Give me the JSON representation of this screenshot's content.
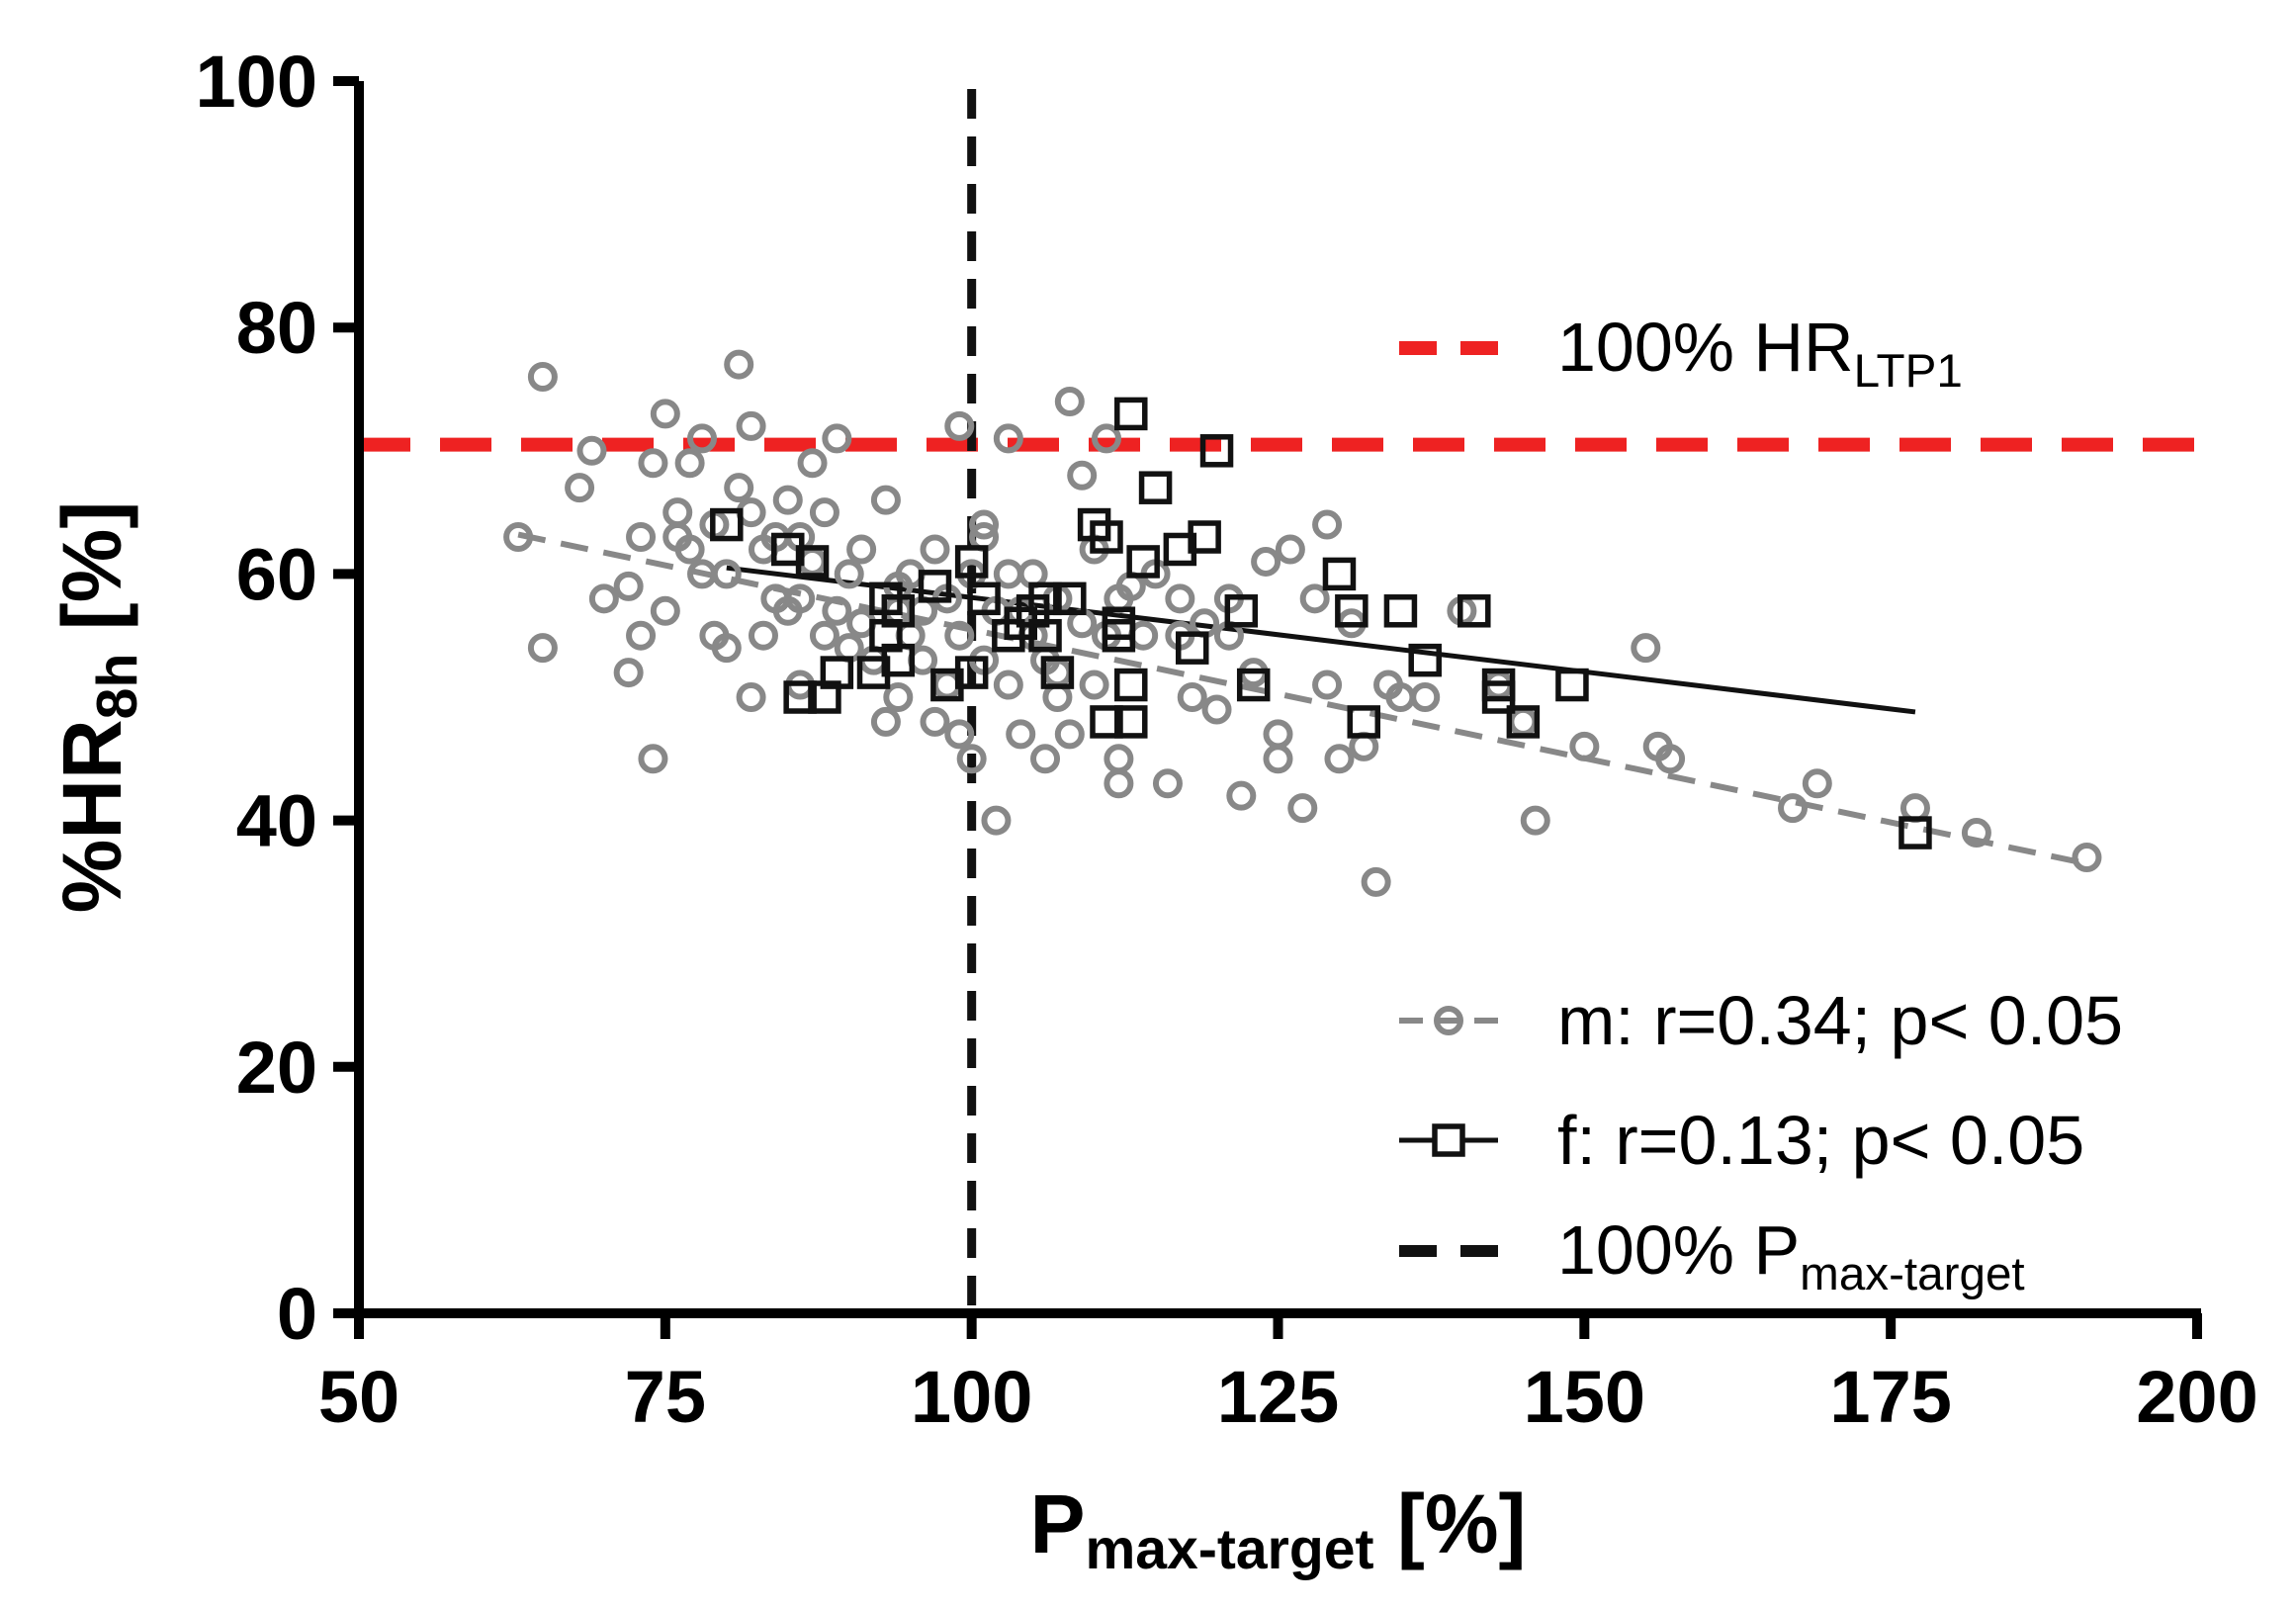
{
  "chart_data": {
    "type": "scatter",
    "xlabel": {
      "main": "P",
      "sub": "max-target",
      "suffix": " [%]"
    },
    "ylabel": {
      "main": "%HR",
      "sub": "8h",
      "suffix": " [%]"
    },
    "xlim": [
      50,
      200
    ],
    "ylim": [
      0,
      100
    ],
    "xticks": [
      "50",
      "75",
      "100",
      "125",
      "150",
      "175",
      "200"
    ],
    "yticks": [
      "0",
      "20",
      "40",
      "60",
      "80",
      "100"
    ],
    "grid": false,
    "legend_placement": "right",
    "reference_lines": [
      {
        "orientation": "horizontal",
        "value": 70.5,
        "color": "#ee2222",
        "style": "dashed",
        "legend": {
          "main": "100% HR",
          "sub": "LTP1"
        }
      },
      {
        "orientation": "vertical",
        "value": 100,
        "color": "#111111",
        "style": "dashed",
        "legend": {
          "main": "100% P",
          "sub": "max-target"
        }
      }
    ],
    "series": [
      {
        "name": "m: r=0.34; p< 0.05",
        "marker": "circle",
        "color": "#888888",
        "fit_style": "dashed",
        "fit": {
          "x": [
            63,
            191
          ],
          "y": [
            63.2,
            36.5
          ]
        },
        "x": [
          63,
          65,
          65,
          68,
          69,
          70,
          72,
          72,
          73,
          73,
          74,
          74,
          75,
          75,
          76,
          76,
          77,
          77,
          78,
          78,
          79,
          79,
          80,
          80,
          81,
          81,
          82,
          82,
          82,
          83,
          83,
          84,
          84,
          85,
          85,
          86,
          86,
          87,
          87,
          88,
          88,
          89,
          89,
          90,
          90,
          91,
          91,
          92,
          93,
          93,
          94,
          94,
          95,
          95,
          96,
          96,
          97,
          97,
          98,
          98,
          99,
          99,
          100,
          100,
          101,
          101,
          102,
          102,
          103,
          103,
          104,
          104,
          105,
          105,
          106,
          106,
          107,
          107,
          108,
          108,
          109,
          109,
          110,
          110,
          111,
          111,
          112,
          112,
          113,
          114,
          115,
          116,
          117,
          118,
          119,
          120,
          121,
          122,
          123,
          124,
          125,
          126,
          127,
          128,
          129,
          130,
          131,
          132,
          133,
          134,
          135,
          137,
          140,
          143,
          145,
          146,
          150,
          155,
          156,
          157,
          167,
          169,
          177,
          182,
          191,
          86,
          94,
          99,
          101,
          103,
          107,
          112,
          117,
          121,
          125,
          129
        ],
        "y": [
          63,
          76,
          54,
          67,
          70,
          58,
          52,
          59,
          55,
          63,
          45,
          69,
          57,
          73,
          63,
          65,
          62,
          69,
          60,
          71,
          55,
          64,
          54,
          60,
          67,
          77,
          50,
          72,
          65,
          62,
          55,
          63,
          58,
          57,
          66,
          51,
          58,
          69,
          61,
          55,
          65,
          57,
          71,
          54,
          60,
          56,
          62,
          53,
          48,
          66,
          50,
          59,
          55,
          60,
          53,
          57,
          62,
          48,
          58,
          51,
          55,
          47,
          45,
          60,
          63,
          53,
          57,
          40,
          51,
          71,
          57,
          47,
          55,
          60,
          53,
          45,
          58,
          52,
          74,
          47,
          56,
          68,
          62,
          51,
          71,
          55,
          58,
          43,
          59,
          55,
          60,
          43,
          58,
          50,
          56,
          49,
          58,
          42,
          52,
          61,
          45,
          62,
          41,
          58,
          64,
          45,
          56,
          46,
          35,
          51,
          50,
          50,
          57,
          51,
          48,
          40,
          46,
          54,
          46,
          45,
          41,
          43,
          41,
          39,
          37,
          63,
          57,
          72,
          64,
          60,
          50,
          45,
          55,
          55,
          47,
          51
        ]
      },
      {
        "name": "f: r=0.13; p< 0.05",
        "marker": "square",
        "color": "#111111",
        "fit_style": "solid",
        "fit": {
          "x": [
            80,
            177
          ],
          "y": [
            60.5,
            48.8
          ]
        },
        "x": [
          80,
          85,
          86,
          87,
          88,
          89,
          92,
          93,
          93,
          94,
          94,
          97,
          98,
          100,
          100,
          101,
          103,
          104,
          105,
          106,
          106,
          107,
          108,
          110,
          111,
          111,
          112,
          112,
          113,
          113,
          113,
          114,
          115,
          117,
          118,
          119,
          120,
          122,
          123,
          130,
          131,
          132,
          135,
          137,
          141,
          143,
          143,
          145,
          149,
          177
        ],
        "y": [
          64,
          62,
          50,
          61,
          50,
          52,
          52,
          58,
          55,
          57,
          53,
          59,
          51,
          52,
          61,
          58,
          55,
          56,
          57,
          58,
          55,
          52,
          58,
          64,
          63,
          48,
          56,
          55,
          73,
          51,
          48,
          61,
          67,
          62,
          54,
          63,
          70,
          57,
          51,
          60,
          57,
          48,
          57,
          53,
          57,
          51,
          50,
          48,
          51,
          39
        ]
      }
    ]
  }
}
